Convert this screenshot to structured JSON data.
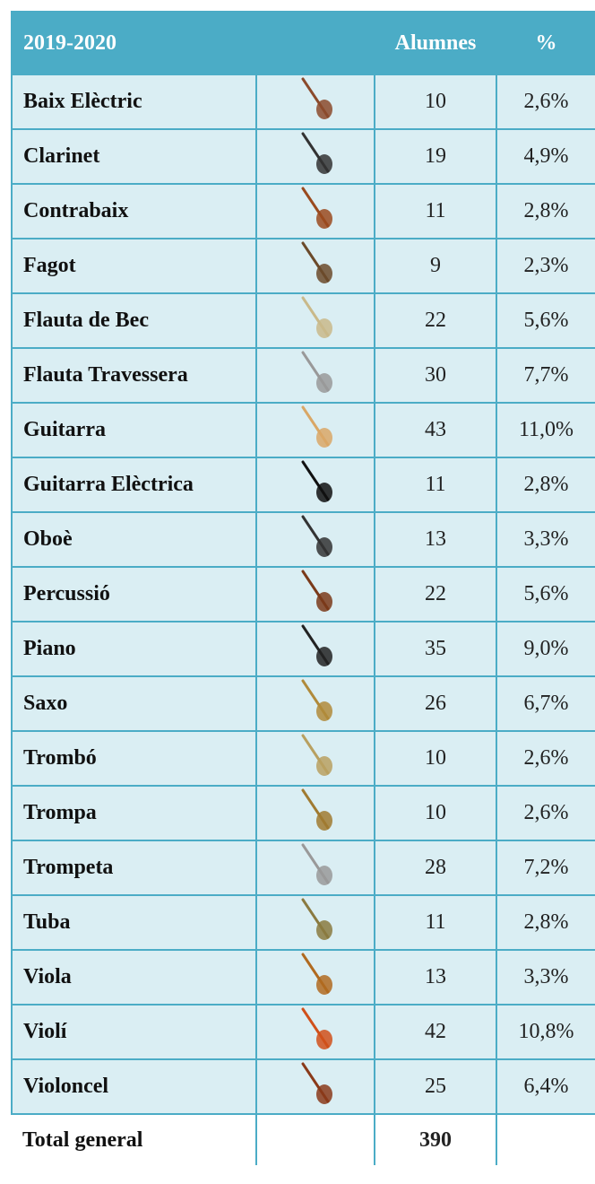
{
  "table": {
    "header": {
      "year": "2019-2020",
      "count": "Alumnes",
      "percent": "%"
    },
    "rows": [
      [
        "Baix Elèctric",
        10,
        "2,6%"
      ],
      [
        "Clarinet",
        19,
        "4,9%"
      ],
      [
        "Contrabaix",
        11,
        "2,8%"
      ],
      [
        "Fagot",
        9,
        "2,3%"
      ],
      [
        "Flauta de Bec",
        22,
        "5,6%"
      ],
      [
        "Flauta Travessera",
        30,
        "7,7%"
      ],
      [
        "Guitarra",
        43,
        "11,0%"
      ],
      [
        "Guitarra Elèctrica",
        11,
        "2,8%"
      ],
      [
        "Oboè",
        13,
        "3,3%"
      ],
      [
        "Percussió",
        22,
        "5,6%"
      ],
      [
        "Piano",
        35,
        "9,0%"
      ],
      [
        "Saxo",
        26,
        "6,7%"
      ],
      [
        "Trombó",
        10,
        "2,6%"
      ],
      [
        "Trompa",
        10,
        "2,6%"
      ],
      [
        "Trompeta",
        28,
        "7,2%"
      ],
      [
        "Tuba",
        11,
        "2,8%"
      ],
      [
        "Viola",
        13,
        "3,3%"
      ],
      [
        "Violí",
        42,
        "10,8%"
      ],
      [
        "Violoncel",
        25,
        "6,4%"
      ]
    ],
    "total": {
      "label": "Total general",
      "value": 390
    }
  }
}
